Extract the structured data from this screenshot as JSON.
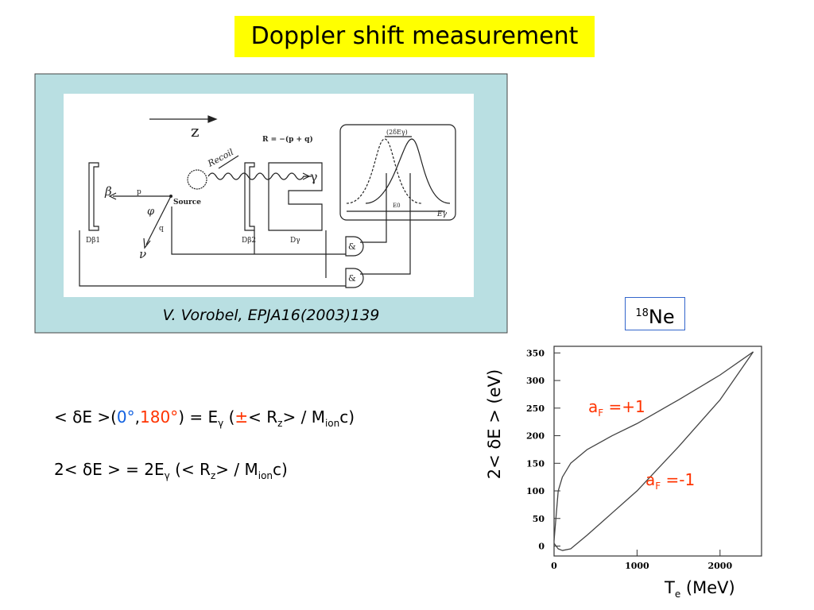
{
  "title": "Doppler shift measurement",
  "figure": {
    "caption": "V. Vorobel, EPJA16(2003)139",
    "labels": {
      "z": "z",
      "recoil": "Recoil",
      "r_formula": "R = −(p + q)",
      "gamma": "γ",
      "beta": "β",
      "p": "p",
      "source": "Source",
      "phi": "φ",
      "q": "q",
      "nu": "ν",
      "d_beta1": "Dβ1",
      "d_beta2": "Dβ2",
      "d_gamma": "Dγ",
      "width": "(2δEγ)",
      "e0": "E0",
      "e_gamma": "Eγ",
      "and1": "&",
      "and2": "&"
    }
  },
  "equation1": [
    "< δE >(",
    "0°",
    ",",
    "180°",
    ") = E",
    "γ",
    " (",
    "±",
    "< R",
    "z",
    "> / M",
    "ion",
    "c)"
  ],
  "equation2": [
    "2< δE > = 2E",
    "γ",
    " (< R",
    "z",
    "> / M",
    "ion",
    "c)"
  ],
  "nucleus": {
    "mass": "18",
    "symbol": "Ne"
  },
  "chart_data": {
    "type": "line",
    "x_label": {
      "main": "T",
      "sub": "e",
      "unit": " (MeV)"
    },
    "y_label": "2< δE > (eV)",
    "x": [
      0,
      50,
      100,
      200,
      400,
      700,
      1000,
      1500,
      2000,
      2400
    ],
    "series": [
      {
        "color": "#444444",
        "values": [
          10,
          100,
          125,
          150,
          175,
          200,
          222,
          265,
          310,
          352
        ]
      },
      {
        "color": "#444444",
        "values": [
          5,
          -5,
          -8,
          -5,
          20,
          60,
          100,
          180,
          265,
          352
        ]
      }
    ],
    "annotations": [
      {
        "main": "a",
        "sub": "F",
        "rest": " =+1"
      },
      {
        "main": "a",
        "sub": "F",
        "rest": " =-1"
      }
    ],
    "xlim": [
      0,
      2500
    ],
    "ylim": [
      -18,
      362
    ],
    "xticks": [
      0,
      1000,
      2000
    ],
    "yticks": [
      0,
      50,
      100,
      150,
      200,
      250,
      300,
      350
    ]
  }
}
